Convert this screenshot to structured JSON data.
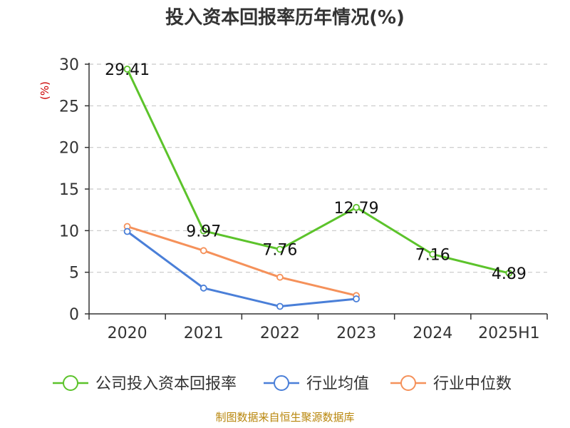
{
  "chart_data": {
    "type": "line",
    "title": "投入资本回报率历年情况(%)",
    "ylabel": "(%)",
    "categories": [
      "2020",
      "2021",
      "2022",
      "2023",
      "2024",
      "2025H1"
    ],
    "ylim": [
      0,
      30
    ],
    "yticks": [
      0,
      5,
      10,
      15,
      20,
      25,
      30
    ],
    "grid": true,
    "legend_position": "bottom",
    "series": [
      {
        "name": "公司投入资本回报率",
        "color": "#5cc32b",
        "values": [
          29.41,
          9.97,
          7.76,
          12.79,
          7.16,
          4.89
        ],
        "labels": [
          "29.41",
          "9.97",
          "7.76",
          "12.79",
          "7.16",
          "4.89"
        ]
      },
      {
        "name": "行业均值",
        "color": "#4a7fd8",
        "values": [
          9.9,
          3.1,
          0.9,
          1.8,
          null,
          null
        ]
      },
      {
        "name": "行业中位数",
        "color": "#f5915a",
        "values": [
          10.5,
          7.6,
          4.4,
          2.2,
          null,
          null
        ]
      }
    ],
    "source": "制图数据来自恒生聚源数据库"
  }
}
